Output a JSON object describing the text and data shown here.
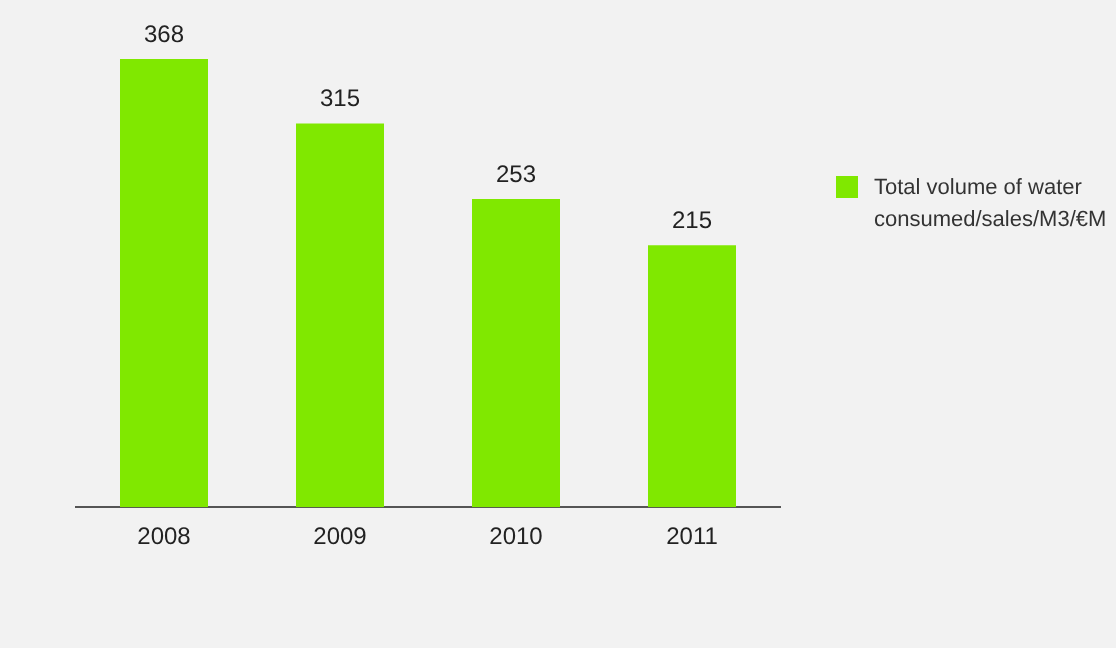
{
  "chart_data": {
    "type": "bar",
    "categories": [
      "2008",
      "2009",
      "2010",
      "2011"
    ],
    "series": [
      {
        "name": "Total volume of water consumed/sales/M3/€M",
        "color": "#80e800",
        "values": [
          368,
          315,
          253,
          215
        ]
      }
    ],
    "relative": false,
    "data_labels": true,
    "legend": "right",
    "grid": false
  }
}
